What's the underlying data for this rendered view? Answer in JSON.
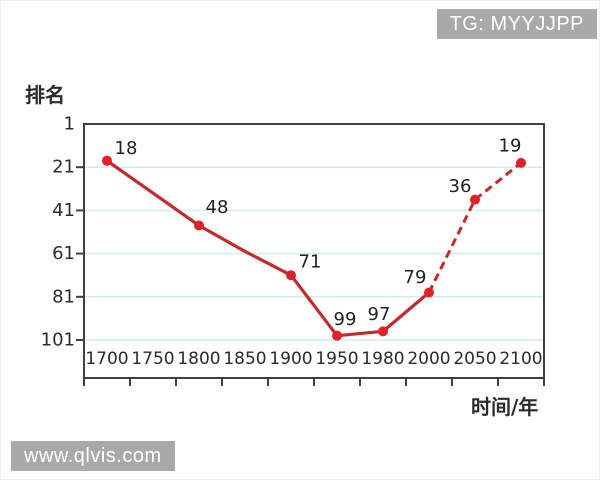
{
  "page": {
    "top_badge": "TG: MYYJJPP",
    "watermark": "www.qlvis.com",
    "badge_bg": "#a9a9a9"
  },
  "chart_data": {
    "type": "line",
    "title": "",
    "ylabel": "排名",
    "xlabel": "时间/年",
    "categories": [
      "1700",
      "1750",
      "1800",
      "1850",
      "1900",
      "1950",
      "1980",
      "2000",
      "2050",
      "2100"
    ],
    "y_ticks": [
      1,
      21,
      41,
      61,
      81,
      101
    ],
    "y_axis_inverted": true,
    "ylim": [
      1,
      101
    ],
    "grid": true,
    "legend": "none",
    "colors": {
      "line": "#c32a2b",
      "marker": "#e02228",
      "grid": "#d2eeec",
      "axis": "#404040",
      "text": "#2b2b2b"
    },
    "series": [
      {
        "name": "ranking-over-time",
        "points": [
          {
            "x": "1700",
            "value": 18,
            "labeled": true,
            "segment": "solid",
            "label_dx": 19,
            "label_dy": -12
          },
          {
            "x": "1750",
            "value": 33,
            "labeled": false,
            "segment": "solid"
          },
          {
            "x": "1800",
            "value": 48,
            "labeled": true,
            "segment": "solid",
            "label_dx": 18,
            "label_dy": -18
          },
          {
            "x": "1850",
            "value": 60,
            "labeled": false,
            "segment": "solid"
          },
          {
            "x": "1900",
            "value": 71,
            "labeled": true,
            "segment": "solid",
            "label_dx": 19,
            "label_dy": -13
          },
          {
            "x": "1950",
            "value": 99,
            "labeled": true,
            "segment": "solid",
            "label_dx": 8,
            "label_dy": -16
          },
          {
            "x": "1980",
            "value": 97,
            "labeled": true,
            "segment": "solid",
            "label_dx": -4,
            "label_dy": -17
          },
          {
            "x": "2000",
            "value": 79,
            "labeled": true,
            "segment": "both",
            "label_dx": -14,
            "label_dy": -15
          },
          {
            "x": "2050",
            "value": 36,
            "labeled": true,
            "segment": "dashed",
            "label_dx": -15,
            "label_dy": -13
          },
          {
            "x": "2100",
            "value": 19,
            "labeled": true,
            "segment": "dashed",
            "label_dx": -11,
            "label_dy": -17
          }
        ]
      }
    ]
  }
}
